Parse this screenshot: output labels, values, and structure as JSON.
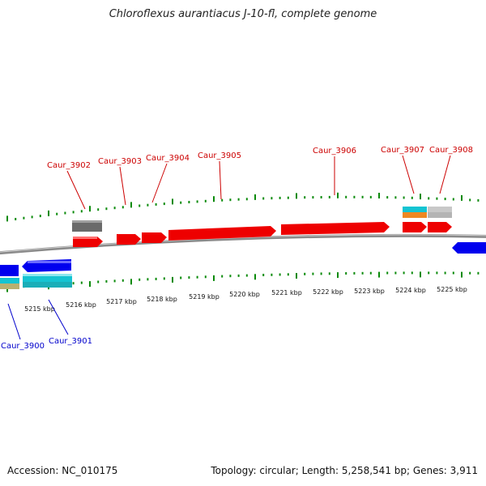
{
  "title": "Chloroflexus aurantiacus J-10-fl, complete genome",
  "footer": {
    "accession": "Accession: NC_010175",
    "summary": "Topology: circular; Length: 5,258,541 bp; Genes: 3,911"
  },
  "colors": {
    "forward_gene": "#ee0000",
    "reverse_gene": "#0000ee",
    "forward_label": "#cc0000",
    "reverse_label": "#0000cc",
    "ticks": "#0a8a0a",
    "backbone": "#8a8a8a"
  },
  "axis": {
    "tick_labels": [
      "5215 kbp",
      "5216 kbp",
      "5217 kbp",
      "5218 kbp",
      "5219 kbp",
      "5220 kbp",
      "5221 kbp",
      "5222 kbp",
      "5223 kbp",
      "5224 kbp",
      "5225 kbp"
    ]
  },
  "genes_forward": [
    {
      "label": "Caur_3902"
    },
    {
      "label": "Caur_3903"
    },
    {
      "label": "Caur_3904"
    },
    {
      "label": "Caur_3905"
    },
    {
      "label": "Caur_3906"
    },
    {
      "label": "Caur_3907"
    },
    {
      "label": "Caur_3908"
    }
  ],
  "genes_reverse": [
    {
      "label": "Caur_3900"
    },
    {
      "label": "Caur_3901"
    }
  ]
}
